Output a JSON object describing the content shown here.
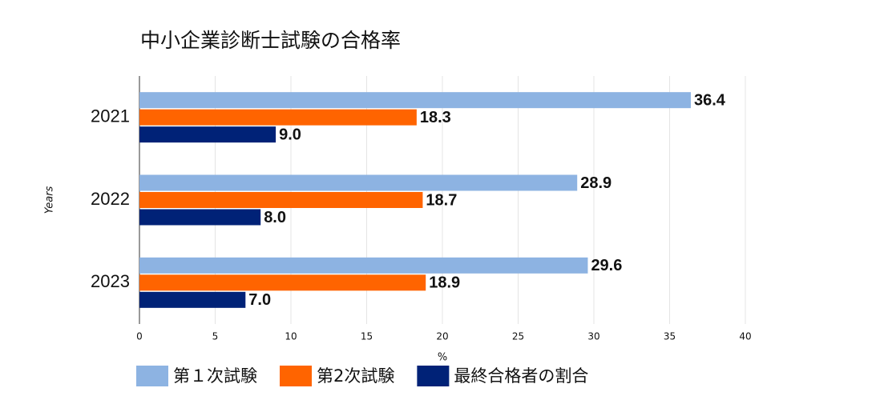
{
  "chart_data": {
    "type": "hbar",
    "title": "中小企業診断士試験の合格率",
    "categories": [
      "2021",
      "2022",
      "2023"
    ],
    "series": [
      {
        "name": "第１次試験",
        "color": "#8db3e2",
        "values": [
          36.4,
          28.9,
          29.6
        ],
        "value_labels": [
          "36.4",
          "28.9",
          "29.6"
        ]
      },
      {
        "name": "第2次試験",
        "color": "#ff6400",
        "values": [
          18.3,
          18.7,
          18.9
        ],
        "value_labels": [
          "18.3",
          "18.7",
          "18.9"
        ]
      },
      {
        "name": "最終合格者の割合",
        "color": "#002277",
        "values": [
          9.0,
          8.0,
          7.0
        ],
        "value_labels": [
          "9.0",
          "8.0",
          "7.0"
        ]
      }
    ],
    "xlabel": "%",
    "ylabel": "Years",
    "xlim": [
      0,
      40
    ],
    "xticks": [
      0,
      5,
      10,
      15,
      20,
      25,
      30,
      35,
      40
    ],
    "grid": true
  }
}
